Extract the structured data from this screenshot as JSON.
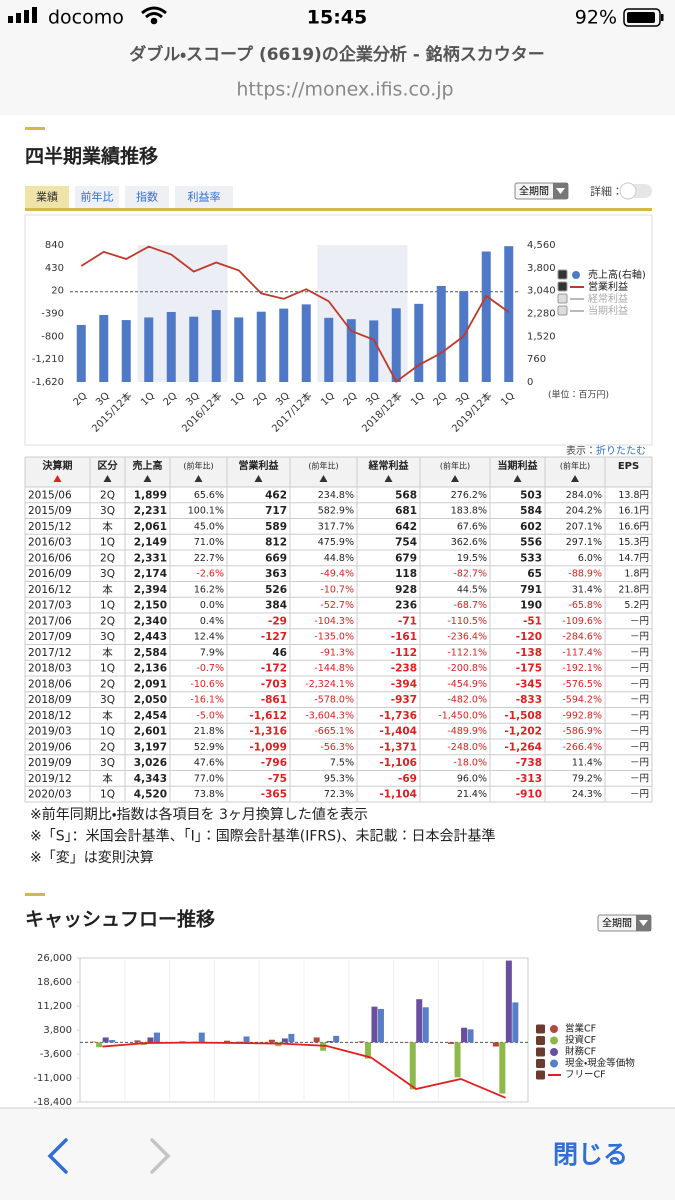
{
  "status_bar": {
    "carrier": "docomo",
    "time": "15:45",
    "battery": "92%"
  },
  "browser": {
    "page_title": "ダブル・スコープ (6619)の企業分析 - 銘柄スカウター",
    "url": "https://monex.ifis.co.jp"
  },
  "quarterly": {
    "title": "四半期業績推移",
    "tabs": [
      "業績",
      "前年比",
      "指数",
      "利益率"
    ],
    "period_select": "全期間",
    "detail_label": "詳細：",
    "chart_data": {
      "type": "combo",
      "categories": [
        "2Q",
        "3Q",
        "2015/12本",
        "1Q",
        "2Q",
        "3Q",
        "2016/12本",
        "1Q",
        "2Q",
        "3Q",
        "2017/12本",
        "1Q",
        "2Q",
        "3Q",
        "2018/12本",
        "1Q",
        "2Q",
        "3Q",
        "2019/12本",
        "1Q"
      ],
      "series": [
        {
          "name": "売上高(右軸)",
          "type": "bar",
          "axis": "y2",
          "color": "#4f79c6",
          "enabled": true,
          "values": [
            1899,
            2231,
            2061,
            2149,
            2331,
            2174,
            2394,
            2150,
            2340,
            2443,
            2584,
            2136,
            2091,
            2050,
            2454,
            2601,
            3197,
            3026,
            4343,
            4520
          ]
        },
        {
          "name": "営業利益",
          "type": "line",
          "color": "#c0392b",
          "enabled": true,
          "values": [
            462,
            717,
            589,
            812,
            669,
            363,
            526,
            384,
            -29,
            -127,
            46,
            -172,
            -703,
            -861,
            -1612,
            -1316,
            -1099,
            -796,
            -75,
            -365
          ]
        },
        {
          "name": "経常利益",
          "type": "line",
          "color": "#b8b8b8",
          "enabled": false
        },
        {
          "name": "当期利益",
          "type": "line",
          "color": "#b8b8b8",
          "enabled": false
        }
      ],
      "ylim": [
        -1620,
        840
      ],
      "yticks": [
        840,
        430,
        20,
        -390,
        -800,
        {
          "value": -1210,
          "label": "-1,210"
        },
        {
          "value": -1620,
          "label": "-1,620"
        }
      ],
      "y2lim": [
        0,
        4560
      ],
      "y2ticks": [
        {
          "value": 4560,
          "label": "4,560"
        },
        {
          "value": 3800,
          "label": "3,800"
        },
        {
          "value": 3040,
          "label": "3,040"
        },
        {
          "value": 2280,
          "label": "2,280"
        },
        {
          "value": 1520,
          "label": "1,520"
        },
        760,
        0
      ],
      "grid": false,
      "unit_label": "(単位：百万円)"
    },
    "display_label": "表示：",
    "collapse_link": "折りたたむ",
    "table": {
      "header": [
        "決算期",
        "区分",
        "売上高",
        "(前年比)",
        "営業利益",
        "(前年比)",
        "経常利益",
        "(前年比)",
        "当期利益",
        "(前年比)",
        "EPS"
      ],
      "rows": [
        [
          "2015/06",
          "2Q",
          "1,899",
          "65.6%",
          "462",
          "234.8%",
          "568",
          "276.2%",
          "503",
          "284.0%",
          "13.8円"
        ],
        [
          "2015/09",
          "3Q",
          "2,231",
          "100.1%",
          "717",
          "582.9%",
          "681",
          "183.8%",
          "584",
          "204.2%",
          "16.1円"
        ],
        [
          "2015/12",
          "本",
          "2,061",
          "45.0%",
          "589",
          "317.7%",
          "642",
          "67.6%",
          "602",
          "207.1%",
          "16.6円"
        ],
        [
          "2016/03",
          "1Q",
          "2,149",
          "71.0%",
          "812",
          "475.9%",
          "754",
          "362.6%",
          "556",
          "297.1%",
          "15.3円"
        ],
        [
          "2016/06",
          "2Q",
          "2,331",
          "22.7%",
          "669",
          "44.8%",
          "679",
          "19.5%",
          "533",
          "6.0%",
          "14.7円"
        ],
        [
          "2016/09",
          "3Q",
          "2,174",
          "-2.6%",
          "363",
          "-49.4%",
          "118",
          "-82.7%",
          "65",
          "-88.9%",
          "1.8円"
        ],
        [
          "2016/12",
          "本",
          "2,394",
          "16.2%",
          "526",
          "-10.7%",
          "928",
          "44.5%",
          "791",
          "31.4%",
          "21.8円"
        ],
        [
          "2017/03",
          "1Q",
          "2,150",
          "0.0%",
          "384",
          "-52.7%",
          "236",
          "-68.7%",
          "190",
          "-65.8%",
          "5.2円"
        ],
        [
          "2017/06",
          "2Q",
          "2,340",
          "0.4%",
          "-29",
          "-104.3%",
          "-71",
          "-110.5%",
          "-51",
          "-109.6%",
          "－円"
        ],
        [
          "2017/09",
          "3Q",
          "2,443",
          "12.4%",
          "-127",
          "-135.0%",
          "-161",
          "-236.4%",
          "-120",
          "-284.6%",
          "－円"
        ],
        [
          "2017/12",
          "本",
          "2,584",
          "7.9%",
          "46",
          "-91.3%",
          "-112",
          "-112.1%",
          "-138",
          "-117.4%",
          "－円"
        ],
        [
          "2018/03",
          "1Q",
          "2,136",
          "-0.7%",
          "-172",
          "-144.8%",
          "-238",
          "-200.8%",
          "-175",
          "-192.1%",
          "－円"
        ],
        [
          "2018/06",
          "2Q",
          "2,091",
          "-10.6%",
          "-703",
          "-2,324.1%",
          "-394",
          "-454.9%",
          "-345",
          "-576.5%",
          "－円"
        ],
        [
          "2018/09",
          "3Q",
          "2,050",
          "-16.1%",
          "-861",
          "-578.0%",
          "-937",
          "-482.0%",
          "-833",
          "-594.2%",
          "－円"
        ],
        [
          "2018/12",
          "本",
          "2,454",
          "-5.0%",
          "-1,612",
          "-3,604.3%",
          "-1,736",
          "-1,450.0%",
          "-1,508",
          "-992.8%",
          "－円"
        ],
        [
          "2019/03",
          "1Q",
          "2,601",
          "21.8%",
          "-1,316",
          "-665.1%",
          "-1,404",
          "-489.9%",
          "-1,202",
          "-586.9%",
          "－円"
        ],
        [
          "2019/06",
          "2Q",
          "3,197",
          "52.9%",
          "-1,099",
          "-56.3%",
          "-1,371",
          "-248.0%",
          "-1,264",
          "-266.4%",
          "－円"
        ],
        [
          "2019/09",
          "3Q",
          "3,026",
          "47.6%",
          "-796",
          "7.5%",
          "-1,106",
          "-18.0%",
          "-738",
          "11.4%",
          "－円"
        ],
        [
          "2019/12",
          "本",
          "4,343",
          "77.0%",
          "-75",
          "95.3%",
          "-69",
          "96.0%",
          "-313",
          "79.2%",
          "－円"
        ],
        [
          "2020/03",
          "1Q",
          "4,520",
          "73.8%",
          "-365",
          "72.3%",
          "-1,104",
          "21.4%",
          "-910",
          "24.3%",
          "－円"
        ]
      ]
    },
    "notes": [
      "※前年同期比・指数は各項目を 3ヶ月換算した値を表示",
      "※「S」：米国会計基準、「I」：国際会計基準(IFRS)、未記載：日本会計基準",
      "※「変」は変則決算"
    ]
  },
  "cashflow": {
    "title": "キャッシュフロー推移",
    "period_select": "全期間",
    "chart_data": {
      "type": "bar_line",
      "categories": [
        null,
        null,
        null,
        null,
        null,
        null,
        null,
        null,
        null,
        null
      ],
      "series": [
        {
          "name": "営業CF",
          "type": "bar",
          "color": "#b5473f",
          "values": [
            200,
            600,
            300,
            500,
            800,
            1500,
            300,
            100,
            -500,
            -1300
          ]
        },
        {
          "name": "投資CF",
          "type": "bar",
          "color": "#8db84a",
          "values": [
            -1500,
            -800,
            -400,
            -300,
            -1200,
            -2600,
            -5000,
            -14500,
            -10800,
            -15800
          ]
        },
        {
          "name": "財務CF",
          "type": "bar",
          "color": "#6a4f9e",
          "values": [
            1500,
            1500,
            200,
            200,
            1200,
            400,
            11000,
            13300,
            4500,
            25200
          ]
        },
        {
          "name": "現金・現金等価物",
          "type": "bar",
          "color": "#5a7ec6",
          "values": [
            700,
            3000,
            3000,
            1800,
            2600,
            2000,
            10300,
            10800,
            4000,
            12300
          ]
        },
        {
          "name": "フリーCF",
          "type": "line",
          "color": "#e02020",
          "values": [
            -1300,
            -200,
            -100,
            -200,
            -400,
            -1100,
            -4700,
            -14400,
            -11300,
            -17100
          ]
        }
      ],
      "ylim": [
        -18400,
        26000
      ],
      "yticks": [
        {
          "value": 26000,
          "label": "26,000"
        },
        {
          "value": 18600,
          "label": "18,600"
        },
        {
          "value": 11200,
          "label": "11,200"
        },
        {
          "value": 3800,
          "label": "3,800"
        },
        {
          "value": -3600,
          "label": "-3,600"
        },
        {
          "value": -11000,
          "label": "-11,000"
        },
        {
          "value": -18400,
          "label": "-18,400"
        }
      ],
      "grid": false
    }
  },
  "toolbar": {
    "close": "閉じる"
  }
}
